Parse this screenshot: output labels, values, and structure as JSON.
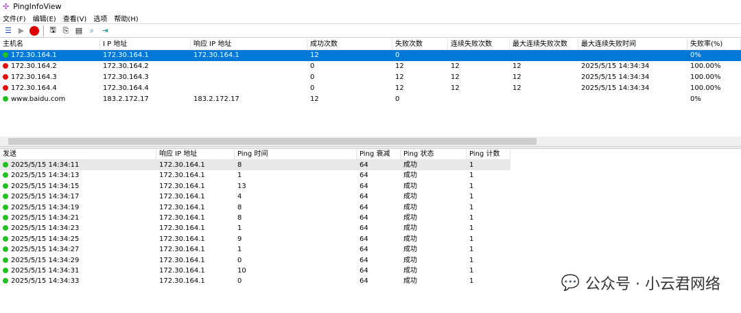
{
  "window": {
    "title": "PingInfoView"
  },
  "menu": [
    "文件(F)",
    "编辑(E)",
    "查看(V)",
    "选项",
    "帮助(H)"
  ],
  "toolbar": [
    "properties-icon",
    "start-icon",
    "stop-icon",
    "save-icon",
    "copy-icon",
    "options-icon",
    "report-icon",
    "exit-icon"
  ],
  "colors": {
    "selection": "#0078d7",
    "success": "#22c022",
    "fail": "#e01010"
  },
  "hosts": {
    "columns": [
      "主机名",
      "I P 地址",
      "响应 IP 地址",
      "成功次数",
      "失败次数",
      "连续失败次数",
      "最大连续失败次数",
      "最大连续失败时间",
      "失败率(%)"
    ],
    "rows": [
      {
        "status": "success",
        "selected": true,
        "cells": [
          "172.30.164.1",
          "172.30.164.1",
          "172.30.164.1",
          "12",
          "0",
          "",
          "",
          "",
          "0%"
        ]
      },
      {
        "status": "fail",
        "cells": [
          "172.30.164.2",
          "172.30.164.2",
          "",
          "0",
          "12",
          "12",
          "12",
          "2025/5/15 14:34:34",
          "100.00%"
        ]
      },
      {
        "status": "fail",
        "cells": [
          "172.30.164.3",
          "172.30.164.3",
          "",
          "0",
          "12",
          "12",
          "12",
          "2025/5/15 14:34:34",
          "100.00%"
        ]
      },
      {
        "status": "fail",
        "cells": [
          "172.30.164.4",
          "172.30.164.4",
          "",
          "0",
          "12",
          "12",
          "12",
          "2025/5/15 14:34:34",
          "100.00%"
        ]
      },
      {
        "status": "success",
        "cells": [
          "www.baidu.com",
          "183.2.172.17",
          "183.2.172.17",
          "12",
          "0",
          "",
          "",
          "",
          "0%"
        ]
      }
    ]
  },
  "log": {
    "columns": [
      "发送",
      "响应 IP 地址",
      "Ping 时间",
      "Ping 衰减",
      "Ping 状态",
      "Ping 计数"
    ],
    "rows": [
      [
        "2025/5/15 14:34:11",
        "172.30.164.1",
        "8",
        "64",
        "成功",
        "1"
      ],
      [
        "2025/5/15 14:34:13",
        "172.30.164.1",
        "1",
        "64",
        "成功",
        "1"
      ],
      [
        "2025/5/15 14:34:15",
        "172.30.164.1",
        "13",
        "64",
        "成功",
        "1"
      ],
      [
        "2025/5/15 14:34:17",
        "172.30.164.1",
        "4",
        "64",
        "成功",
        "1"
      ],
      [
        "2025/5/15 14:34:19",
        "172.30.164.1",
        "8",
        "64",
        "成功",
        "1"
      ],
      [
        "2025/5/15 14:34:21",
        "172.30.164.1",
        "8",
        "64",
        "成功",
        "1"
      ],
      [
        "2025/5/15 14:34:23",
        "172.30.164.1",
        "1",
        "64",
        "成功",
        "1"
      ],
      [
        "2025/5/15 14:34:25",
        "172.30.164.1",
        "9",
        "64",
        "成功",
        "1"
      ],
      [
        "2025/5/15 14:34:27",
        "172.30.164.1",
        "1",
        "64",
        "成功",
        "1"
      ],
      [
        "2025/5/15 14:34:29",
        "172.30.164.1",
        "0",
        "64",
        "成功",
        "1"
      ],
      [
        "2025/5/15 14:34:31",
        "172.30.164.1",
        "10",
        "64",
        "成功",
        "1"
      ],
      [
        "2025/5/15 14:34:33",
        "172.30.164.1",
        "0",
        "64",
        "成功",
        "1"
      ]
    ]
  },
  "watermark": "公众号 · 小云君网络"
}
